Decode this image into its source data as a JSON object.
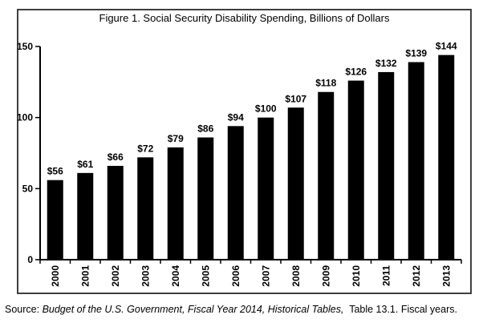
{
  "chart_data": {
    "type": "bar",
    "title": "Figure 1. Social Security Disability Spending, Billions of Dollars",
    "categories": [
      "2000",
      "2001",
      "2002",
      "2003",
      "2004",
      "2005",
      "2006",
      "2007",
      "2008",
      "2009",
      "2010",
      "2011",
      "2012",
      "2013"
    ],
    "values": [
      56,
      61,
      66,
      72,
      79,
      86,
      94,
      100,
      107,
      118,
      126,
      132,
      139,
      144
    ],
    "label_prefix": "$",
    "xlabel": "",
    "ylabel": "",
    "ylim": [
      0,
      150
    ],
    "yticks": [
      0,
      50,
      100,
      150
    ],
    "bar_color": "#000000",
    "axis_color": "#000000",
    "grid": false,
    "legend": "none"
  },
  "source": {
    "prefix": "Source: ",
    "italic": "Budget of the U.S. Government, Fiscal Year 2014, Historical Tables,",
    "suffix": "  Table 13.1. Fiscal years."
  }
}
